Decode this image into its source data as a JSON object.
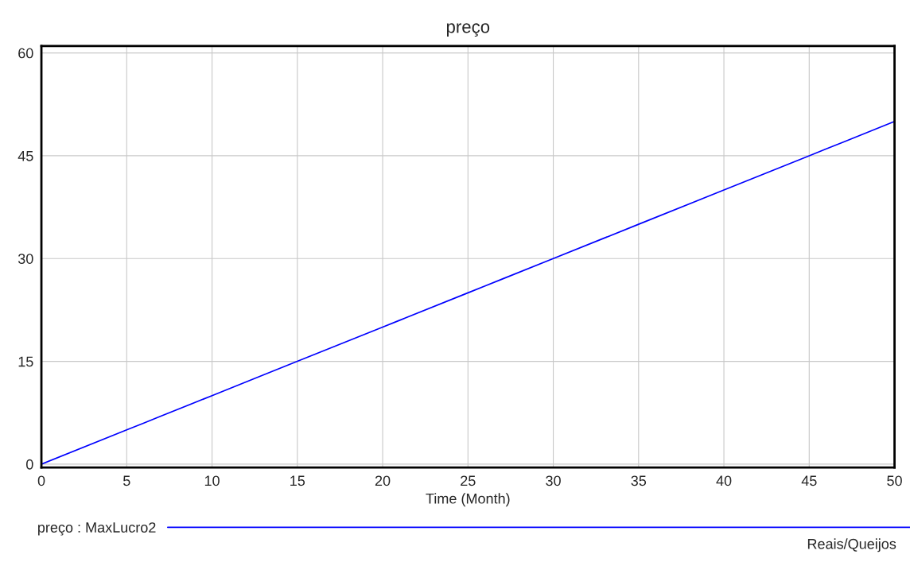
{
  "chart_data": {
    "type": "line",
    "title": "preço",
    "xlabel": "Time (Month)",
    "x": [
      0,
      5,
      6,
      7,
      10,
      13,
      15,
      20,
      21,
      25,
      26,
      27,
      30,
      33,
      35,
      40,
      45,
      46,
      47,
      50
    ],
    "series": [
      {
        "name": "preço : MaxLucro2",
        "color": "#0000ff",
        "values": [
          0,
          5,
          6,
          7,
          10,
          13,
          15,
          20,
          21,
          25,
          26,
          27,
          30,
          33,
          35,
          40,
          45,
          46,
          47,
          50
        ]
      }
    ],
    "xlim": [
      0,
      50
    ],
    "xticks": [
      0,
      5,
      10,
      15,
      20,
      25,
      30,
      35,
      40,
      45,
      50
    ],
    "ylim": [
      -0.5,
      61
    ],
    "yticks": [
      0,
      15,
      30,
      45,
      60
    ],
    "grid": true,
    "legend": "bottom",
    "marker": "none",
    "line_style": "solid",
    "annotations": [
      "Reais/Queijos"
    ]
  }
}
